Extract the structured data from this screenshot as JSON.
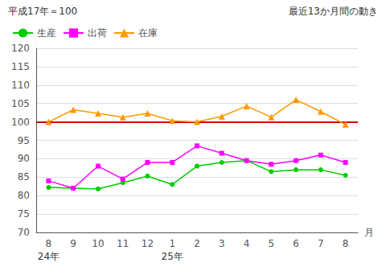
{
  "chart_data": {
    "type": "line",
    "categories": [
      "8",
      "9",
      "10",
      "11",
      "12",
      "1",
      "2",
      "3",
      "4",
      "5",
      "6",
      "7",
      "8"
    ],
    "x_label": "月",
    "series": [
      {
        "name": "生産",
        "color": "#00cc00",
        "marker": "circle",
        "values": [
          82.2,
          82.0,
          81.8,
          83.5,
          85.3,
          83.0,
          88.0,
          89.0,
          89.5,
          86.5,
          87.0,
          87.0,
          85.5
        ]
      },
      {
        "name": "出荷",
        "color": "#ff00ff",
        "marker": "square",
        "values": [
          84.0,
          82.0,
          88.0,
          84.5,
          89.0,
          89.0,
          93.5,
          91.5,
          89.5,
          88.5,
          89.5,
          91.0,
          89.0
        ]
      },
      {
        "name": "在庫",
        "color": "#ff9900",
        "marker": "triangle",
        "values": [
          100.0,
          103.3,
          102.3,
          101.3,
          102.3,
          100.3,
          100.0,
          101.5,
          104.3,
          101.3,
          106.0,
          102.8,
          99.3
        ]
      }
    ],
    "reference_line": {
      "y": 100,
      "color": "#cc0000"
    },
    "ylim": [
      70,
      120
    ],
    "yticks": [
      70,
      75,
      80,
      85,
      90,
      95,
      100,
      105,
      110,
      115,
      120
    ],
    "grid": true,
    "legend": "upper left",
    "annotations": [
      {
        "text": "平成17年＝100"
      },
      {
        "text": "最近13か月間の動き"
      },
      {
        "text": "24年",
        "category_index": 0
      },
      {
        "text": "25年",
        "category_index": 5
      }
    ]
  }
}
